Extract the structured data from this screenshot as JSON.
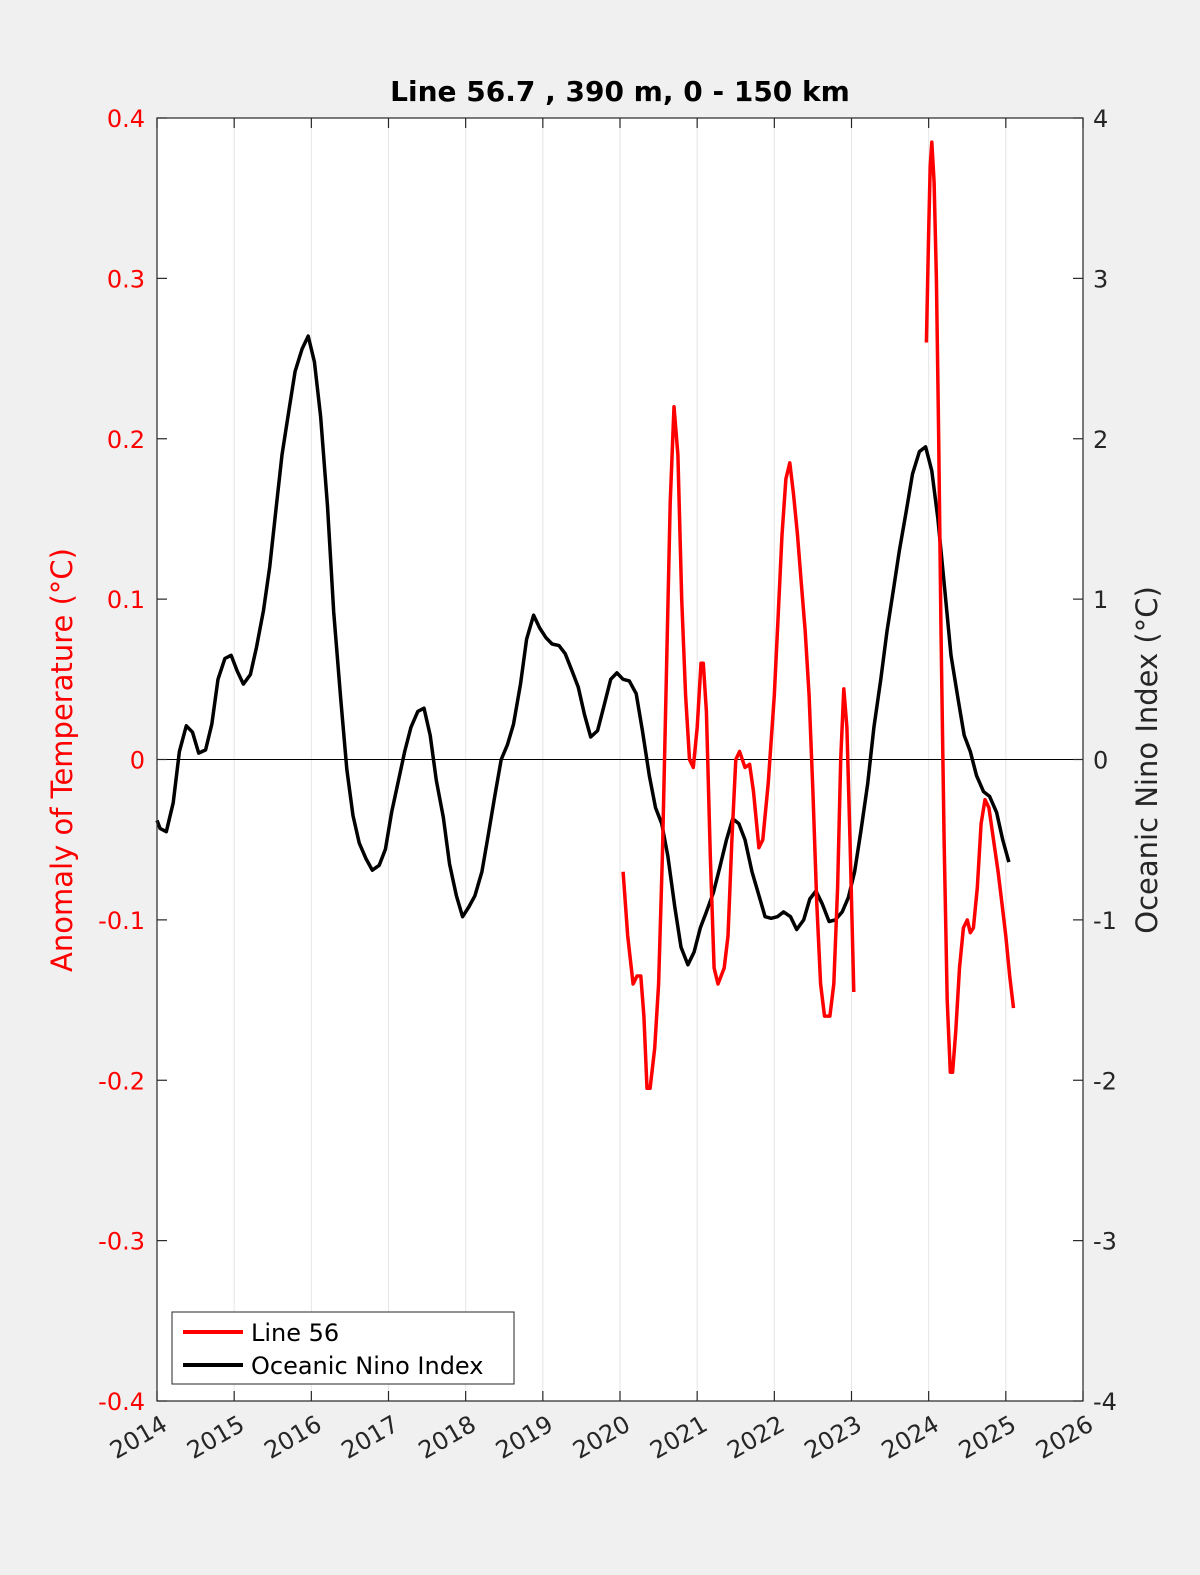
{
  "chart_data": {
    "type": "line",
    "title": "Line 56.7 , 390 m, 0 - 150 km",
    "xlabel": "",
    "ylabel_left": "Anomaly of Temperature (°C)",
    "ylabel_right": "Oceanic Nino Index (°C)",
    "xlim": [
      2014,
      2026
    ],
    "ylim_left": [
      -0.4,
      0.4
    ],
    "ylim_right": [
      -4,
      4
    ],
    "x_ticks": [
      "2014",
      "2015",
      "2016",
      "2017",
      "2018",
      "2019",
      "2020",
      "2021",
      "2022",
      "2023",
      "2024",
      "2025",
      "2026"
    ],
    "y_ticks_left": [
      "-0.4",
      "-0.3",
      "-0.2",
      "-0.1",
      "0",
      "0.1",
      "0.2",
      "0.3",
      "0.4"
    ],
    "y_ticks_right": [
      "-4",
      "-3",
      "-2",
      "-1",
      "0",
      "1",
      "2",
      "3",
      "4"
    ],
    "grid": "vertical",
    "legend_position": "bottom-left",
    "colors": {
      "line56": "#ff0000",
      "oni": "#000000",
      "left_axis": "#ff0000"
    },
    "series": [
      {
        "name": "Line 56",
        "axis": "left",
        "segments": [
          [
            [
              2020.04,
              -0.07
            ],
            [
              2020.1,
              -0.11
            ],
            [
              2020.17,
              -0.14
            ],
            [
              2020.22,
              -0.135
            ],
            [
              2020.27,
              -0.135
            ],
            [
              2020.31,
              -0.16
            ],
            [
              2020.35,
              -0.205
            ],
            [
              2020.39,
              -0.205
            ],
            [
              2020.45,
              -0.18
            ],
            [
              2020.5,
              -0.14
            ],
            [
              2020.55,
              -0.06
            ],
            [
              2020.6,
              0.05
            ],
            [
              2020.65,
              0.16
            ],
            [
              2020.7,
              0.22
            ],
            [
              2020.75,
              0.19
            ],
            [
              2020.8,
              0.1
            ],
            [
              2020.85,
              0.04
            ],
            [
              2020.9,
              0.0
            ],
            [
              2020.95,
              -0.005
            ],
            [
              2021.0,
              0.02
            ],
            [
              2021.05,
              0.06
            ],
            [
              2021.08,
              0.06
            ],
            [
              2021.12,
              0.03
            ],
            [
              2021.17,
              -0.06
            ],
            [
              2021.22,
              -0.13
            ],
            [
              2021.27,
              -0.14
            ],
            [
              2021.35,
              -0.13
            ],
            [
              2021.4,
              -0.11
            ],
            [
              2021.45,
              -0.05
            ],
            [
              2021.5,
              0.0
            ],
            [
              2021.55,
              0.005
            ],
            [
              2021.62,
              -0.005
            ],
            [
              2021.68,
              -0.003
            ],
            [
              2021.73,
              -0.02
            ],
            [
              2021.8,
              -0.055
            ],
            [
              2021.85,
              -0.05
            ],
            [
              2021.92,
              -0.015
            ],
            [
              2022.0,
              0.04
            ],
            [
              2022.05,
              0.09
            ],
            [
              2022.1,
              0.14
            ],
            [
              2022.15,
              0.175
            ],
            [
              2022.2,
              0.185
            ],
            [
              2022.25,
              0.165
            ],
            [
              2022.3,
              0.14
            ],
            [
              2022.35,
              0.11
            ],
            [
              2022.4,
              0.08
            ],
            [
              2022.45,
              0.04
            ],
            [
              2022.5,
              -0.02
            ],
            [
              2022.55,
              -0.09
            ],
            [
              2022.6,
              -0.14
            ],
            [
              2022.65,
              -0.16
            ],
            [
              2022.72,
              -0.16
            ],
            [
              2022.77,
              -0.14
            ],
            [
              2022.82,
              -0.08
            ],
            [
              2022.86,
              0.0
            ],
            [
              2022.9,
              0.044
            ],
            [
              2022.94,
              0.02
            ],
            [
              2022.98,
              -0.05
            ],
            [
              2023.03,
              -0.145
            ]
          ],
          [
            [
              2023.97,
              0.26
            ],
            [
              2024.0,
              0.33
            ],
            [
              2024.02,
              0.37
            ],
            [
              2024.04,
              0.385
            ],
            [
              2024.07,
              0.36
            ],
            [
              2024.1,
              0.3
            ],
            [
              2024.13,
              0.2
            ],
            [
              2024.16,
              0.08
            ],
            [
              2024.2,
              -0.05
            ],
            [
              2024.24,
              -0.15
            ],
            [
              2024.28,
              -0.195
            ],
            [
              2024.31,
              -0.195
            ],
            [
              2024.35,
              -0.17
            ],
            [
              2024.4,
              -0.13
            ],
            [
              2024.45,
              -0.105
            ],
            [
              2024.5,
              -0.1
            ],
            [
              2024.54,
              -0.108
            ],
            [
              2024.58,
              -0.105
            ],
            [
              2024.63,
              -0.08
            ],
            [
              2024.68,
              -0.04
            ],
            [
              2024.73,
              -0.025
            ],
            [
              2024.78,
              -0.03
            ],
            [
              2024.84,
              -0.05
            ],
            [
              2024.9,
              -0.07
            ],
            [
              2024.95,
              -0.09
            ],
            [
              2025.0,
              -0.11
            ],
            [
              2025.05,
              -0.135
            ],
            [
              2025.1,
              -0.155
            ]
          ]
        ]
      },
      {
        "name": "Oceanic Nino Index",
        "axis": "right",
        "points": [
          [
            2014.0,
            -0.38
          ],
          [
            2014.04,
            -0.43
          ],
          [
            2014.12,
            -0.45
          ],
          [
            2014.21,
            -0.27
          ],
          [
            2014.29,
            0.05
          ],
          [
            2014.38,
            0.21
          ],
          [
            2014.46,
            0.17
          ],
          [
            2014.54,
            0.04
          ],
          [
            2014.63,
            0.06
          ],
          [
            2014.71,
            0.22
          ],
          [
            2014.79,
            0.5
          ],
          [
            2014.88,
            0.63
          ],
          [
            2014.96,
            0.65
          ],
          [
            2015.04,
            0.55
          ],
          [
            2015.12,
            0.47
          ],
          [
            2015.21,
            0.53
          ],
          [
            2015.29,
            0.7
          ],
          [
            2015.38,
            0.93
          ],
          [
            2015.46,
            1.2
          ],
          [
            2015.54,
            1.55
          ],
          [
            2015.62,
            1.9
          ],
          [
            2015.71,
            2.18
          ],
          [
            2015.79,
            2.42
          ],
          [
            2015.88,
            2.56
          ],
          [
            2015.96,
            2.64
          ],
          [
            2016.04,
            2.48
          ],
          [
            2016.12,
            2.14
          ],
          [
            2016.21,
            1.58
          ],
          [
            2016.29,
            0.92
          ],
          [
            2016.38,
            0.38
          ],
          [
            2016.46,
            -0.06
          ],
          [
            2016.54,
            -0.35
          ],
          [
            2016.62,
            -0.52
          ],
          [
            2016.71,
            -0.62
          ],
          [
            2016.79,
            -0.69
          ],
          [
            2016.88,
            -0.66
          ],
          [
            2016.96,
            -0.56
          ],
          [
            2017.04,
            -0.33
          ],
          [
            2017.12,
            -0.15
          ],
          [
            2017.21,
            0.05
          ],
          [
            2017.29,
            0.2
          ],
          [
            2017.38,
            0.3
          ],
          [
            2017.46,
            0.32
          ],
          [
            2017.54,
            0.15
          ],
          [
            2017.62,
            -0.13
          ],
          [
            2017.71,
            -0.36
          ],
          [
            2017.79,
            -0.65
          ],
          [
            2017.88,
            -0.85
          ],
          [
            2017.96,
            -0.98
          ],
          [
            2018.04,
            -0.92
          ],
          [
            2018.12,
            -0.85
          ],
          [
            2018.21,
            -0.7
          ],
          [
            2018.29,
            -0.48
          ],
          [
            2018.38,
            -0.22
          ],
          [
            2018.46,
            0.0
          ],
          [
            2018.54,
            0.09
          ],
          [
            2018.62,
            0.22
          ],
          [
            2018.71,
            0.47
          ],
          [
            2018.79,
            0.75
          ],
          [
            2018.88,
            0.9
          ],
          [
            2018.96,
            0.82
          ],
          [
            2019.04,
            0.76
          ],
          [
            2019.12,
            0.72
          ],
          [
            2019.21,
            0.71
          ],
          [
            2019.29,
            0.66
          ],
          [
            2019.38,
            0.55
          ],
          [
            2019.46,
            0.45
          ],
          [
            2019.54,
            0.28
          ],
          [
            2019.62,
            0.14
          ],
          [
            2019.71,
            0.18
          ],
          [
            2019.79,
            0.33
          ],
          [
            2019.88,
            0.5
          ],
          [
            2019.96,
            0.54
          ],
          [
            2020.04,
            0.5
          ],
          [
            2020.12,
            0.49
          ],
          [
            2020.21,
            0.41
          ],
          [
            2020.29,
            0.18
          ],
          [
            2020.38,
            -0.1
          ],
          [
            2020.46,
            -0.3
          ],
          [
            2020.54,
            -0.4
          ],
          [
            2020.62,
            -0.6
          ],
          [
            2020.71,
            -0.92
          ],
          [
            2020.79,
            -1.17
          ],
          [
            2020.88,
            -1.28
          ],
          [
            2020.96,
            -1.2
          ],
          [
            2021.04,
            -1.05
          ],
          [
            2021.12,
            -0.95
          ],
          [
            2021.21,
            -0.83
          ],
          [
            2021.29,
            -0.68
          ],
          [
            2021.38,
            -0.5
          ],
          [
            2021.46,
            -0.37
          ],
          [
            2021.54,
            -0.4
          ],
          [
            2021.62,
            -0.5
          ],
          [
            2021.71,
            -0.7
          ],
          [
            2021.79,
            -0.83
          ],
          [
            2021.88,
            -0.98
          ],
          [
            2021.96,
            -0.99
          ],
          [
            2022.04,
            -0.98
          ],
          [
            2022.12,
            -0.95
          ],
          [
            2022.21,
            -0.98
          ],
          [
            2022.29,
            -1.06
          ],
          [
            2022.38,
            -1.0
          ],
          [
            2022.46,
            -0.87
          ],
          [
            2022.54,
            -0.82
          ],
          [
            2022.62,
            -0.9
          ],
          [
            2022.71,
            -1.01
          ],
          [
            2022.79,
            -1.0
          ],
          [
            2022.88,
            -0.95
          ],
          [
            2022.96,
            -0.86
          ],
          [
            2023.04,
            -0.7
          ],
          [
            2023.12,
            -0.45
          ],
          [
            2023.21,
            -0.15
          ],
          [
            2023.29,
            0.2
          ],
          [
            2023.38,
            0.5
          ],
          [
            2023.46,
            0.8
          ],
          [
            2023.54,
            1.05
          ],
          [
            2023.62,
            1.3
          ],
          [
            2023.71,
            1.55
          ],
          [
            2023.79,
            1.78
          ],
          [
            2023.88,
            1.92
          ],
          [
            2023.96,
            1.95
          ],
          [
            2024.04,
            1.8
          ],
          [
            2024.12,
            1.5
          ],
          [
            2024.21,
            1.05
          ],
          [
            2024.29,
            0.65
          ],
          [
            2024.38,
            0.38
          ],
          [
            2024.46,
            0.15
          ],
          [
            2024.54,
            0.05
          ],
          [
            2024.62,
            -0.1
          ],
          [
            2024.71,
            -0.2
          ],
          [
            2024.79,
            -0.23
          ],
          [
            2024.88,
            -0.33
          ],
          [
            2024.96,
            -0.5
          ],
          [
            2025.04,
            -0.64
          ]
        ]
      }
    ]
  }
}
